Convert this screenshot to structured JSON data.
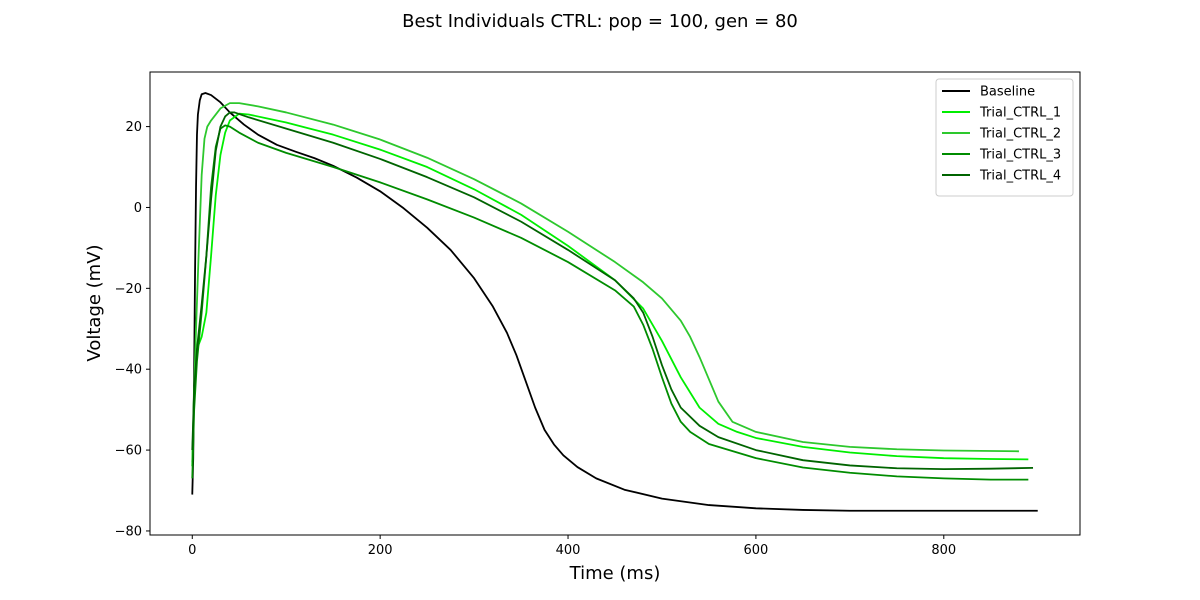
{
  "chart_data": {
    "type": "line",
    "title": "Best Individuals CTRL: pop = 100, gen = 80",
    "xlabel": "Time (ms)",
    "ylabel": "Voltage (mV)",
    "xlim": [
      -45,
      945
    ],
    "ylim": [
      -81,
      33.5
    ],
    "xticks": [
      0,
      200,
      400,
      600,
      800
    ],
    "yticks": [
      -80,
      -60,
      -40,
      -20,
      0,
      20
    ],
    "xtick_labels": [
      "0",
      "200",
      "400",
      "600",
      "800"
    ],
    "ytick_labels": [
      "−80",
      "−60",
      "−40",
      "−20",
      "0",
      "20"
    ],
    "grid": false,
    "legend_position": "top-right",
    "series": [
      {
        "name": "Baseline",
        "color": "#000000",
        "points": [
          [
            0,
            -71
          ],
          [
            1,
            -62
          ],
          [
            2,
            -40
          ],
          [
            3,
            -15
          ],
          [
            4,
            5
          ],
          [
            5,
            18
          ],
          [
            6,
            23
          ],
          [
            8,
            26.5
          ],
          [
            10,
            28
          ],
          [
            14,
            28.3
          ],
          [
            20,
            27.8
          ],
          [
            30,
            26
          ],
          [
            40,
            23.5
          ],
          [
            55,
            20.5
          ],
          [
            70,
            18
          ],
          [
            90,
            15.5
          ],
          [
            110,
            13.8
          ],
          [
            130,
            12.2
          ],
          [
            150,
            10.3
          ],
          [
            175,
            7.4
          ],
          [
            200,
            4
          ],
          [
            225,
            -0.2
          ],
          [
            250,
            -5
          ],
          [
            275,
            -10.5
          ],
          [
            300,
            -17.5
          ],
          [
            320,
            -24.5
          ],
          [
            335,
            -31
          ],
          [
            345,
            -36.5
          ],
          [
            355,
            -43
          ],
          [
            365,
            -49.5
          ],
          [
            375,
            -55
          ],
          [
            385,
            -58.6
          ],
          [
            395,
            -61.3
          ],
          [
            410,
            -64.2
          ],
          [
            430,
            -67
          ],
          [
            460,
            -69.8
          ],
          [
            500,
            -72
          ],
          [
            550,
            -73.6
          ],
          [
            600,
            -74.4
          ],
          [
            650,
            -74.8
          ],
          [
            700,
            -75
          ],
          [
            800,
            -75
          ],
          [
            900,
            -75
          ]
        ]
      },
      {
        "name": "Trial_CTRL_1",
        "color": "#00ee00",
        "points": [
          [
            0,
            -64
          ],
          [
            2,
            -45
          ],
          [
            5,
            -35
          ],
          [
            10,
            -32
          ],
          [
            15,
            -26
          ],
          [
            20,
            -12
          ],
          [
            25,
            3
          ],
          [
            30,
            13
          ],
          [
            35,
            18.5
          ],
          [
            40,
            21.5
          ],
          [
            50,
            23.2
          ],
          [
            60,
            23
          ],
          [
            80,
            22
          ],
          [
            100,
            21
          ],
          [
            150,
            18
          ],
          [
            200,
            14.3
          ],
          [
            250,
            10
          ],
          [
            300,
            4.5
          ],
          [
            350,
            -1.8
          ],
          [
            400,
            -9.5
          ],
          [
            450,
            -18
          ],
          [
            480,
            -25
          ],
          [
            500,
            -33
          ],
          [
            520,
            -42
          ],
          [
            540,
            -49.5
          ],
          [
            560,
            -53.5
          ],
          [
            580,
            -55.5
          ],
          [
            600,
            -57
          ],
          [
            650,
            -59.2
          ],
          [
            700,
            -60.6
          ],
          [
            750,
            -61.5
          ],
          [
            800,
            -62
          ],
          [
            850,
            -62.2
          ],
          [
            890,
            -62.3
          ]
        ]
      },
      {
        "name": "Trial_CTRL_2",
        "color": "#2dc82d",
        "points": [
          [
            0,
            -63
          ],
          [
            2,
            -45
          ],
          [
            4,
            -30
          ],
          [
            7,
            -10
          ],
          [
            10,
            8
          ],
          [
            13,
            17
          ],
          [
            16,
            20
          ],
          [
            20,
            21.5
          ],
          [
            30,
            24.5
          ],
          [
            40,
            25.8
          ],
          [
            50,
            25.8
          ],
          [
            70,
            25
          ],
          [
            100,
            23.5
          ],
          [
            150,
            20.5
          ],
          [
            200,
            16.8
          ],
          [
            250,
            12.3
          ],
          [
            300,
            7
          ],
          [
            350,
            1
          ],
          [
            400,
            -6
          ],
          [
            450,
            -13.5
          ],
          [
            480,
            -18.5
          ],
          [
            500,
            -22.5
          ],
          [
            520,
            -28
          ],
          [
            530,
            -32
          ],
          [
            540,
            -37
          ],
          [
            550,
            -42.5
          ],
          [
            560,
            -48
          ],
          [
            575,
            -53
          ],
          [
            600,
            -55.5
          ],
          [
            650,
            -58
          ],
          [
            700,
            -59.2
          ],
          [
            750,
            -59.8
          ],
          [
            800,
            -60.1
          ],
          [
            880,
            -60.3
          ]
        ]
      },
      {
        "name": "Trial_CTRL_3",
        "color": "#008c00",
        "points": [
          [
            0,
            -67
          ],
          [
            2,
            -50
          ],
          [
            5,
            -38
          ],
          [
            10,
            -26
          ],
          [
            15,
            -12
          ],
          [
            20,
            5
          ],
          [
            25,
            15
          ],
          [
            30,
            19.5
          ],
          [
            35,
            20.3
          ],
          [
            40,
            20
          ],
          [
            50,
            18.5
          ],
          [
            70,
            16
          ],
          [
            100,
            13.5
          ],
          [
            150,
            10
          ],
          [
            200,
            6.2
          ],
          [
            250,
            2
          ],
          [
            300,
            -2.5
          ],
          [
            350,
            -7.5
          ],
          [
            400,
            -13.5
          ],
          [
            450,
            -20.5
          ],
          [
            470,
            -24.5
          ],
          [
            480,
            -29
          ],
          [
            490,
            -35
          ],
          [
            500,
            -42
          ],
          [
            510,
            -48.5
          ],
          [
            520,
            -53
          ],
          [
            530,
            -55.5
          ],
          [
            550,
            -58.5
          ],
          [
            600,
            -62
          ],
          [
            650,
            -64.3
          ],
          [
            700,
            -65.6
          ],
          [
            750,
            -66.5
          ],
          [
            800,
            -67
          ],
          [
            850,
            -67.3
          ],
          [
            890,
            -67.3
          ]
        ]
      },
      {
        "name": "Trial_CTRL_4",
        "color": "#006400",
        "points": [
          [
            0,
            -60
          ],
          [
            2,
            -45
          ],
          [
            5,
            -35
          ],
          [
            10,
            -24
          ],
          [
            15,
            -12
          ],
          [
            20,
            2
          ],
          [
            25,
            14
          ],
          [
            30,
            20
          ],
          [
            35,
            22.5
          ],
          [
            40,
            23.5
          ],
          [
            45,
            23.5
          ],
          [
            60,
            22.3
          ],
          [
            100,
            19.5
          ],
          [
            150,
            16
          ],
          [
            200,
            12
          ],
          [
            250,
            7.5
          ],
          [
            300,
            2.5
          ],
          [
            350,
            -3.5
          ],
          [
            400,
            -10.5
          ],
          [
            450,
            -18
          ],
          [
            470,
            -22.5
          ],
          [
            480,
            -26
          ],
          [
            490,
            -32
          ],
          [
            500,
            -39
          ],
          [
            510,
            -45
          ],
          [
            520,
            -49.5
          ],
          [
            540,
            -54
          ],
          [
            560,
            -56.8
          ],
          [
            600,
            -60
          ],
          [
            650,
            -62.5
          ],
          [
            700,
            -63.8
          ],
          [
            750,
            -64.5
          ],
          [
            800,
            -64.7
          ],
          [
            850,
            -64.6
          ],
          [
            895,
            -64.4
          ]
        ]
      }
    ]
  }
}
